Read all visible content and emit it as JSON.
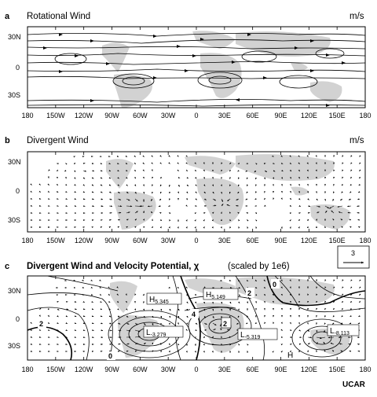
{
  "panels": [
    {
      "letter": "a",
      "title": "Rotational Wind",
      "units": "m/s",
      "lat_ticks": [
        "30N",
        "0",
        "30S"
      ],
      "lon_ticks": [
        "180",
        "150W",
        "120W",
        "90W",
        "60W",
        "30W",
        "0",
        "30E",
        "60E",
        "90E",
        "120E",
        "150E",
        "180"
      ]
    },
    {
      "letter": "b",
      "title": "Divergent Wind",
      "units": "m/s",
      "lat_ticks": [
        "30N",
        "0",
        "30S"
      ],
      "lon_ticks": [
        "180",
        "150W",
        "120W",
        "90W",
        "60W",
        "30W",
        "0",
        "30E",
        "60E",
        "90E",
        "120E",
        "150E",
        "180"
      ],
      "reference_vector": "3"
    },
    {
      "letter": "c",
      "title": "Divergent Wind and Velocity Potential,",
      "symbol": "χ",
      "note": "(scaled by 1e6)",
      "lat_ticks": [
        "30N",
        "0",
        "30S"
      ],
      "lon_ticks": [
        "180",
        "150W",
        "120W",
        "90W",
        "60W",
        "30W",
        "0",
        "30E",
        "60E",
        "90E",
        "120E",
        "150E",
        "180"
      ],
      "extrema": [
        {
          "kind": "H",
          "value": "5.345"
        },
        {
          "kind": "H",
          "value": "5.149"
        },
        {
          "kind": "L",
          "value": "-3.279"
        },
        {
          "kind": "L",
          "value": "-5.319"
        },
        {
          "kind": "L",
          "value": "-8.113"
        },
        {
          "kind": "H",
          "value": ""
        }
      ],
      "contour_labels": [
        "2",
        "4",
        "2",
        "2",
        "0",
        "0"
      ]
    }
  ],
  "credit": "UCAR",
  "colors": {
    "land": "#d2d2d2",
    "ink": "#000000"
  }
}
